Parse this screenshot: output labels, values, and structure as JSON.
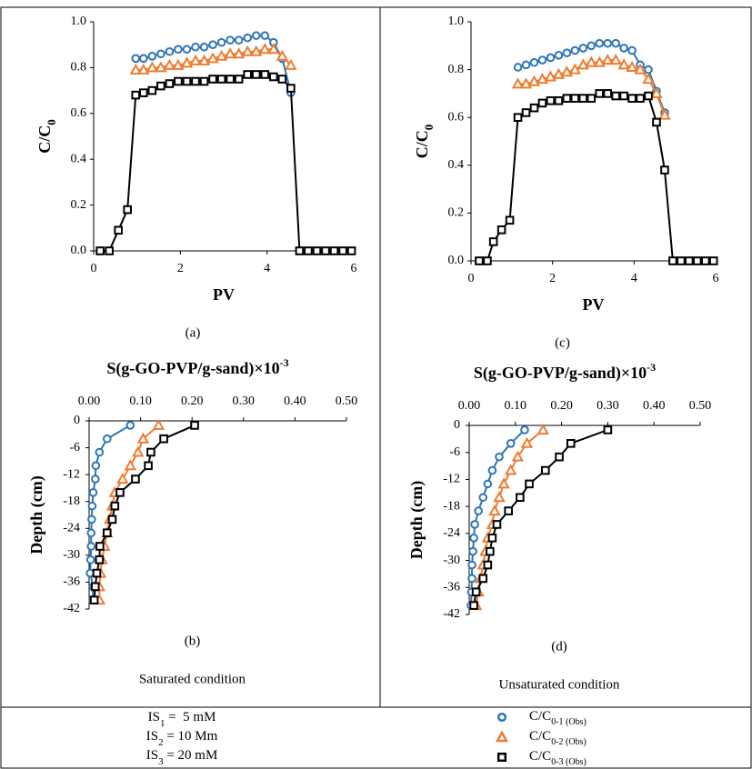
{
  "chart_data": [
    {
      "type": "line",
      "panel": "(a)",
      "xlabel": "PV",
      "ylabel": "C/C",
      "ylabel_sub": "0",
      "x": [
        0.15,
        0.36,
        0.57,
        0.78,
        0.97,
        1.15,
        1.35,
        1.55,
        1.75,
        1.95,
        2.15,
        2.35,
        2.55,
        2.75,
        2.95,
        3.15,
        3.35,
        3.55,
        3.75,
        3.95,
        4.15,
        4.35,
        4.55,
        4.75,
        4.95,
        5.15,
        5.35,
        5.55,
        5.75,
        5.95
      ],
      "xlim": [
        0,
        6
      ],
      "xticks": [
        0,
        2,
        4,
        6
      ],
      "ylim": [
        0,
        1
      ],
      "yticks": [
        {
          "value": 0,
          "label": "0.0"
        },
        0.2,
        0.4,
        0.6,
        0.8,
        {
          "value": 1,
          "label": "1.0"
        }
      ],
      "series": [
        {
          "name": "C/C",
          "name_sub": "0-1 (Obs)",
          "color": "#2e75b6",
          "marker": "circle",
          "values": [
            null,
            null,
            null,
            null,
            0.84,
            0.84,
            0.85,
            0.86,
            0.87,
            0.88,
            0.88,
            0.89,
            0.89,
            0.9,
            0.91,
            0.92,
            0.92,
            0.93,
            0.94,
            0.94,
            0.91,
            0.84,
            0.69,
            null,
            null,
            null,
            null,
            null,
            null,
            null
          ]
        },
        {
          "name": "C/C",
          "name_sub": "0-2 (Obs)",
          "color": "#ed7d31",
          "marker": "triangle",
          "values": [
            null,
            null,
            null,
            null,
            0.79,
            0.79,
            0.8,
            0.8,
            0.81,
            0.81,
            0.82,
            0.83,
            0.83,
            0.84,
            0.85,
            0.86,
            0.86,
            0.87,
            0.87,
            0.88,
            0.88,
            0.85,
            0.81,
            null,
            null,
            null,
            null,
            null,
            null,
            null
          ]
        },
        {
          "name": "C/C",
          "name_sub": "0-3 (Obs)",
          "color": "#000000",
          "marker": "square",
          "values": [
            0,
            0,
            0.09,
            0.18,
            0.68,
            0.69,
            0.7,
            0.72,
            0.73,
            0.74,
            0.74,
            0.74,
            0.74,
            0.75,
            0.75,
            0.75,
            0.75,
            0.77,
            0.77,
            0.77,
            0.76,
            0.75,
            0.71,
            0,
            0,
            0,
            0,
            0,
            0,
            0
          ]
        }
      ]
    },
    {
      "type": "profile",
      "panel": "(b)",
      "title": "S(g-GO-PVP/g-sand)×10",
      "title_sup": "-3",
      "ylabel": "Depth (cm)",
      "caption": "Saturated condition",
      "y": [
        -1,
        -4,
        -7,
        -10,
        -13,
        -16,
        -19,
        -22,
        -25,
        -28,
        -31,
        -34,
        -37,
        -40
      ],
      "xlim": [
        0,
        0.5
      ],
      "xticks": [
        {
          "value": 0,
          "label": "0.00"
        },
        {
          "value": 0.1,
          "label": "0.10"
        },
        {
          "value": 0.2,
          "label": "0.20"
        },
        {
          "value": 0.3,
          "label": "0.30"
        },
        {
          "value": 0.4,
          "label": "0.40"
        },
        {
          "value": 0.5,
          "label": "0.50"
        }
      ],
      "ylim": [
        -42,
        0
      ],
      "yticks": [
        0,
        -6,
        -12,
        -18,
        -24,
        -30,
        -36,
        -42
      ],
      "series": [
        {
          "color": "#2e75b6",
          "marker": "circle",
          "values": [
            0.08,
            0.035,
            0.02,
            0.013,
            0.012,
            0.008,
            0.006,
            0.005,
            0.004,
            0.004,
            0.003,
            0.002,
            0.008,
            0.007
          ]
        },
        {
          "color": "#ed7d31",
          "marker": "triangle",
          "values": [
            0.135,
            0.105,
            0.095,
            0.08,
            0.065,
            0.05,
            0.045,
            0.04,
            0.035,
            0.03,
            0.025,
            0.022,
            0.02,
            0.02
          ]
        },
        {
          "color": "#000000",
          "marker": "square",
          "values": [
            0.205,
            0.145,
            0.12,
            0.115,
            0.09,
            0.06,
            0.05,
            0.045,
            0.035,
            0.021,
            0.02,
            0.015,
            0.012,
            0.01
          ]
        }
      ]
    },
    {
      "type": "line",
      "panel": "(c)",
      "xlabel": "PV",
      "ylabel": "C/C",
      "ylabel_sub": "0",
      "x": [
        0.2,
        0.4,
        0.55,
        0.75,
        0.95,
        1.15,
        1.35,
        1.55,
        1.75,
        1.95,
        2.15,
        2.35,
        2.55,
        2.75,
        2.95,
        3.15,
        3.35,
        3.55,
        3.75,
        3.95,
        4.15,
        4.35,
        4.55,
        4.75,
        4.95,
        5.15,
        5.35,
        5.55,
        5.75,
        5.95
      ],
      "xlim": [
        0,
        6
      ],
      "xticks": [
        0,
        2,
        4,
        6
      ],
      "ylim": [
        0,
        1
      ],
      "yticks": [
        {
          "value": 0,
          "label": "0.0"
        },
        0.2,
        0.4,
        0.6,
        0.8,
        {
          "value": 1,
          "label": "1.0"
        }
      ],
      "series": [
        {
          "color": "#2e75b6",
          "marker": "circle",
          "values": [
            null,
            null,
            null,
            null,
            null,
            0.81,
            0.82,
            0.83,
            0.84,
            0.85,
            0.86,
            0.87,
            0.88,
            0.89,
            0.9,
            0.91,
            0.91,
            0.91,
            0.89,
            0.88,
            0.82,
            0.8,
            0.71,
            0.62,
            null,
            null,
            null,
            null,
            null,
            null
          ]
        },
        {
          "color": "#ed7d31",
          "marker": "triangle",
          "values": [
            null,
            null,
            null,
            null,
            null,
            0.74,
            0.74,
            0.75,
            0.76,
            0.77,
            0.78,
            0.79,
            0.8,
            0.82,
            0.83,
            0.83,
            0.84,
            0.84,
            0.82,
            0.81,
            0.8,
            0.76,
            0.7,
            0.61,
            null,
            null,
            null,
            null,
            null,
            null
          ]
        },
        {
          "color": "#000000",
          "marker": "square",
          "values": [
            0,
            0,
            0.08,
            0.13,
            0.17,
            0.6,
            0.62,
            0.64,
            0.66,
            0.67,
            0.67,
            0.68,
            0.68,
            0.68,
            0.68,
            0.7,
            0.7,
            0.69,
            0.69,
            0.68,
            0.68,
            0.69,
            0.58,
            0.38,
            0,
            0,
            0,
            0,
            0,
            0
          ]
        }
      ]
    },
    {
      "type": "profile",
      "panel": "(d)",
      "title": "S(g-GO-PVP/g-sand)×10",
      "title_sup": "-3",
      "ylabel": "Depth (cm)",
      "caption": "Unsaturated condition",
      "y": [
        -1,
        -4,
        -7,
        -10,
        -13,
        -16,
        -19,
        -22,
        -25,
        -28,
        -31,
        -34,
        -37,
        -40
      ],
      "xlim": [
        0,
        0.5
      ],
      "xticks": [
        {
          "value": 0,
          "label": "0.00"
        },
        {
          "value": 0.1,
          "label": "0.10"
        },
        {
          "value": 0.2,
          "label": "0.20"
        },
        {
          "value": 0.3,
          "label": "0.30"
        },
        {
          "value": 0.4,
          "label": "0.40"
        },
        {
          "value": 0.5,
          "label": "0.50"
        }
      ],
      "ylim": [
        -42,
        0
      ],
      "yticks": [
        0,
        -6,
        -12,
        -18,
        -24,
        -30,
        -36,
        -42
      ],
      "series": [
        {
          "color": "#2e75b6",
          "marker": "circle",
          "values": [
            0.12,
            0.09,
            0.065,
            0.05,
            0.04,
            0.03,
            0.02,
            0.012,
            0.01,
            0.008,
            0.006,
            0.006,
            0.005,
            0.004
          ]
        },
        {
          "color": "#ed7d31",
          "marker": "triangle",
          "values": [
            0.16,
            0.125,
            0.105,
            0.09,
            0.075,
            0.065,
            0.055,
            0.05,
            0.04,
            0.035,
            0.03,
            0.025,
            0.02,
            0.015
          ]
        },
        {
          "color": "#000000",
          "marker": "square",
          "values": [
            0.3,
            0.22,
            0.195,
            0.165,
            0.13,
            0.11,
            0.085,
            0.06,
            0.05,
            0.045,
            0.04,
            0.03,
            0.015,
            0.01
          ]
        }
      ]
    }
  ],
  "notes": [
    {
      "base": "IS",
      "sub": "1",
      "text": " =  5 mM"
    },
    {
      "base": "IS",
      "sub": "2",
      "text": " = 10 Mm"
    },
    {
      "base": "IS",
      "sub": "3",
      "text": " = 20 mM"
    }
  ]
}
